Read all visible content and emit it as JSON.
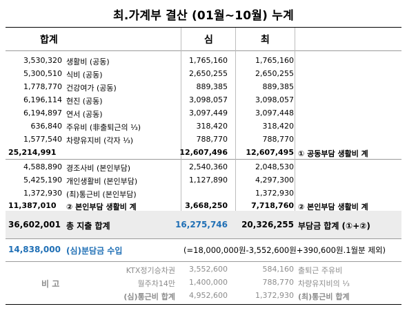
{
  "title": "최.가계부 결산 (01월~10월) 누계",
  "header": {
    "total": "합계",
    "sim": "심",
    "choi": "최"
  },
  "shared_rows": [
    {
      "total": "3,530,320",
      "label": "생활비 (공동)",
      "sim": "1,765,160",
      "choi": "1,765,160"
    },
    {
      "total": "5,300,510",
      "label": "식비 (공동)",
      "sim": "2,650,255",
      "choi": "2,650,255"
    },
    {
      "total": "1,778,770",
      "label": "건강여가 (공동)",
      "sim": "889,385",
      "choi": "889,385"
    },
    {
      "total": "6,196,114",
      "label": "현진 (공동)",
      "sim": "3,098,057",
      "choi": "3,098,057"
    },
    {
      "total": "6,194,897",
      "label": "연서 (공동)",
      "sim": "3,097,449",
      "choi": "3,097,448"
    },
    {
      "total": "636,840",
      "label": "주유비 (非출퇴근의 ⅓)",
      "sim": "318,420",
      "choi": "318,420"
    },
    {
      "total": "1,577,540",
      "label": "차량유지비 (각자 ⅓)",
      "sim": "788,770",
      "choi": "788,770"
    }
  ],
  "shared_subtotal": {
    "total": "25,214,991",
    "sim": "12,607,496",
    "choi": "12,607,495",
    "note": "① 공동부담 생활비 계"
  },
  "personal_rows": [
    {
      "total": "4,588,890",
      "label": "경조사비 (본인부담)",
      "sim": "2,540,360",
      "choi": "2,048,530"
    },
    {
      "total": "5,425,190",
      "label": "개인생활비 (본인부담)",
      "sim": "1,127,890",
      "choi": "4,297,300"
    },
    {
      "total": "1,372,930",
      "label": "(최)통근비 (본인부담)",
      "sim": "",
      "choi": "1,372,930"
    }
  ],
  "personal_subtotal": {
    "total": "11,387,010",
    "label": "② 본인부담 생활비 계",
    "sim": "3,668,250",
    "choi": "7,718,760",
    "note": "② 본인부담 생활비 계"
  },
  "grand_total": {
    "total": "36,602,001",
    "label": "총 지출 합계",
    "sim": "16,275,746",
    "choi": "20,326,255",
    "note": "부담금 합계 (①+②)"
  },
  "income": {
    "amount": "14,838,000",
    "label": "(심)분담금 수입",
    "note": "(=18,000,000원-3,552,600원+390,600원.1월분 제외)"
  },
  "remarks": {
    "label": "비 고",
    "rows": [
      {
        "item": "KTX정기승차권",
        "sim": "3,552,600",
        "choi": "584,160",
        "note": "출퇴근 주유비"
      },
      {
        "item": "월주차14만",
        "sim": "1,400,000",
        "choi": "788,770",
        "note": "차량유지비의 ⅓"
      },
      {
        "item": "(심)통근비 합계",
        "sim": "4,952,600",
        "choi": "1,372,930",
        "note": "(최)통근비 합계"
      }
    ]
  },
  "colors": {
    "blue": "#1f6fb5",
    "gray": "#8c8c8c",
    "band": "#ececec"
  }
}
